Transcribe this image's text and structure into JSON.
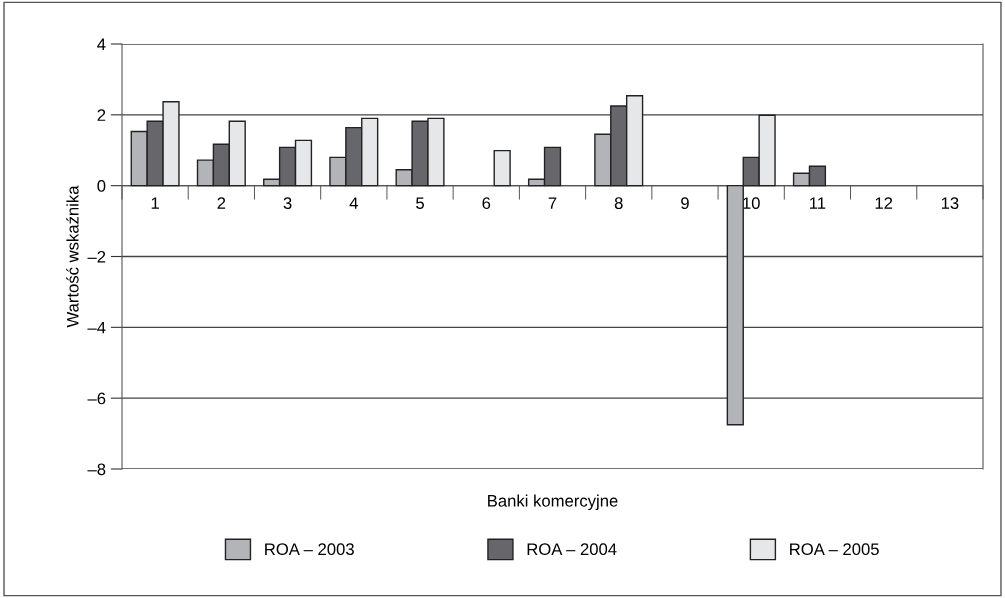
{
  "chart_data": {
    "type": "bar",
    "xlabel": "Banki komercyjne",
    "ylabel": "Wartość wskaźnika",
    "categories": [
      "1",
      "2",
      "3",
      "4",
      "5",
      "6",
      "7",
      "8",
      "9",
      "10",
      "11",
      "12",
      "13"
    ],
    "series": [
      {
        "name": "ROA – 2003",
        "color": "#b3b4b8",
        "values": [
          1.53,
          0.72,
          0.18,
          0.8,
          0.45,
          null,
          0.18,
          1.45,
          null,
          -6.75,
          0.35,
          null,
          null
        ]
      },
      {
        "name": "ROA – 2004",
        "color": "#67676b",
        "values": [
          1.82,
          1.17,
          1.08,
          1.64,
          1.82,
          null,
          1.08,
          2.25,
          null,
          0.8,
          0.55,
          null,
          null
        ]
      },
      {
        "name": "ROA – 2005",
        "color": "#e6e7e9",
        "values": [
          2.37,
          1.82,
          1.28,
          1.9,
          1.9,
          0.99,
          null,
          2.54,
          null,
          1.99,
          null,
          null,
          null
        ]
      }
    ],
    "ylim": [
      -8,
      4
    ],
    "yticks": [
      {
        "value": -8,
        "label": "–8"
      },
      {
        "value": -6,
        "label": "–6"
      },
      {
        "value": -4,
        "label": "–4"
      },
      {
        "value": -2,
        "label": "–2"
      },
      0,
      2,
      4
    ],
    "grid": "y",
    "legend": "bottom"
  }
}
